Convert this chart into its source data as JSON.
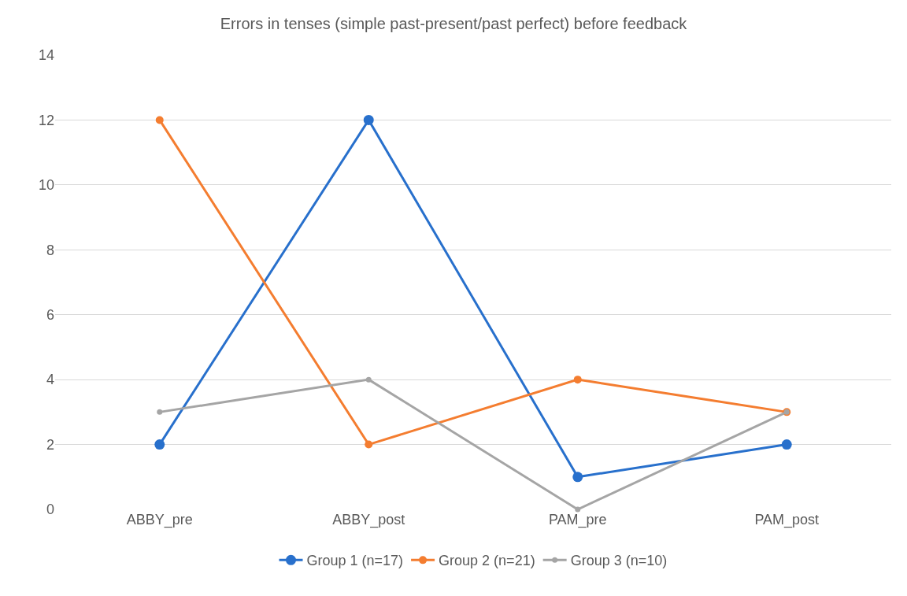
{
  "chart_data": {
    "type": "line",
    "title": "Errors in tenses (simple past-present/past perfect) before feedback",
    "categories": [
      "ABBY_pre",
      "ABBY_post",
      "PAM_pre",
      "PAM_post"
    ],
    "series": [
      {
        "name": "Group 1 (n=17)",
        "color": "#2870cc",
        "values": [
          2,
          12,
          1,
          2
        ]
      },
      {
        "name": "Group 2 (n=21)",
        "color": "#f47d30",
        "values": [
          12,
          2,
          4,
          3
        ]
      },
      {
        "name": "Group 3 (n=10)",
        "color": "#a5a5a5",
        "values": [
          3,
          4,
          0,
          3
        ]
      }
    ],
    "ylim": [
      0,
      14
    ],
    "yticks": [
      0,
      2,
      4,
      6,
      8,
      10,
      12,
      14
    ],
    "grid": "y",
    "legend": "bottom",
    "marker": "circle",
    "line_style": "solid"
  }
}
